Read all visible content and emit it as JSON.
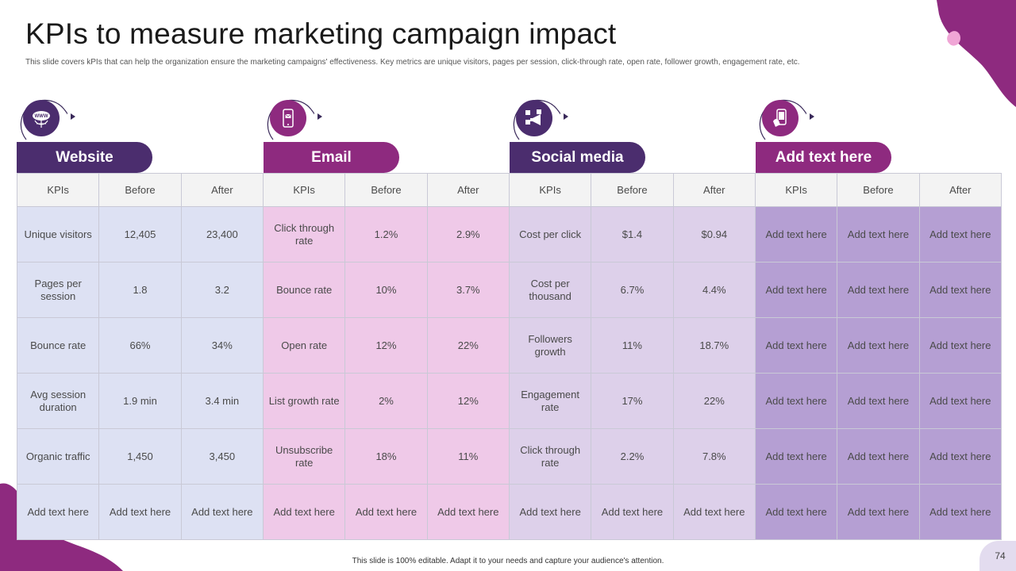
{
  "title": "KPIs to measure marketing campaign impact",
  "subtitle": "This slide covers kPIs that can help the organization ensure the marketing campaigns' effectiveness. Key metrics are unique visitors, pages per session, click-through rate, open rate, follower growth, engagement rate, etc.",
  "colors": {
    "accent_dark": "#4b2d6e",
    "accent_magenta": "#8e2a7f",
    "website": "#dde1f3",
    "email": "#efc9e8",
    "social": "#ddd0ea",
    "extra": "#b59fd3"
  },
  "sections": [
    {
      "label": "Website",
      "icon": "globe-www-icon"
    },
    {
      "label": "Email",
      "icon": "phone-email-icon"
    },
    {
      "label": "Social media",
      "icon": "megaphone-social-icon"
    },
    {
      "label": "Add text here",
      "icon": "hand-phone-icon"
    }
  ],
  "headers": [
    "KPIs",
    "Before",
    "After",
    "KPIs",
    "Before",
    "After",
    "KPIs",
    "Before",
    "After",
    "KPIs",
    "Before",
    "After"
  ],
  "rows": [
    [
      "Unique visitors",
      "12,405",
      "23,400",
      "Click through rate",
      "1.2%",
      "2.9%",
      "Cost per click",
      "$1.4",
      "$0.94",
      "Add text here",
      "Add text here",
      "Add text here"
    ],
    [
      "Pages per session",
      "1.8",
      "3.2",
      "Bounce rate",
      "10%",
      "3.7%",
      "Cost per thousand",
      "6.7%",
      "4.4%",
      "Add text here",
      "Add text here",
      "Add text here"
    ],
    [
      "Bounce rate",
      "66%",
      "34%",
      "Open rate",
      "12%",
      "22%",
      "Followers growth",
      "11%",
      "18.7%",
      "Add text here",
      "Add text here",
      "Add text here"
    ],
    [
      "Avg session duration",
      "1.9 min",
      "3.4 min",
      "List growth rate",
      "2%",
      "12%",
      "Engagement rate",
      "17%",
      "22%",
      "Add text here",
      "Add text here",
      "Add text here"
    ],
    [
      "Organic traffic",
      "1,450",
      "3,450",
      "Unsubscribe rate",
      "18%",
      "11%",
      "Click through rate",
      "2.2%",
      "7.8%",
      "Add text here",
      "Add text here",
      "Add text here"
    ],
    [
      "Add text here",
      "Add text here",
      "Add text here",
      "Add text here",
      "Add text here",
      "Add text here",
      "Add text here",
      "Add text here",
      "Add text here",
      "Add text here",
      "Add text here",
      "Add text here"
    ]
  ],
  "footer": "This slide is 100% editable. Adapt it to your needs and capture your audience's attention.",
  "page_number": "74"
}
